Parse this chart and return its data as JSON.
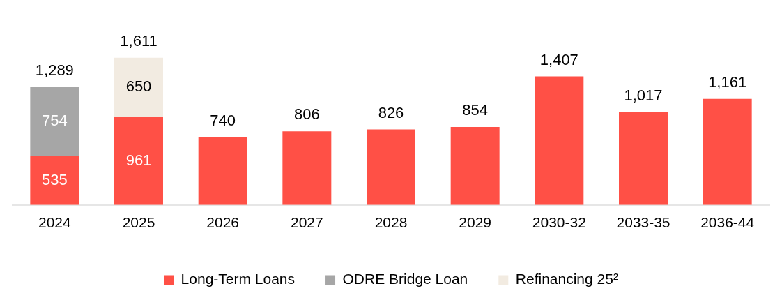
{
  "chart_data": {
    "type": "bar",
    "stacked": true,
    "categories": [
      "2024",
      "2025",
      "2026",
      "2027",
      "2028",
      "2029",
      "2030-32",
      "2033-35",
      "2036-44"
    ],
    "series": [
      {
        "name": "Long-Term Loans",
        "color": "#ff5046",
        "values": [
          535,
          961,
          740,
          806,
          826,
          854,
          1407,
          1017,
          1161
        ],
        "value_labels": [
          "535",
          "961",
          null,
          null,
          null,
          null,
          null,
          null,
          null
        ]
      },
      {
        "name": "ODRE Bridge Loan",
        "color": "#a6a6a6",
        "values": [
          754,
          null,
          null,
          null,
          null,
          null,
          null,
          null,
          null
        ],
        "value_labels": [
          "754",
          null,
          null,
          null,
          null,
          null,
          null,
          null,
          null
        ]
      },
      {
        "name": "Refinancing 25²",
        "color": "#f2ebe1",
        "values": [
          null,
          650,
          null,
          null,
          null,
          null,
          null,
          null,
          null
        ],
        "value_labels": [
          null,
          "650",
          null,
          null,
          null,
          null,
          null,
          null,
          null
        ]
      }
    ],
    "totals": [
      "1,289",
      "1,611",
      "740",
      "806",
      "826",
      "854",
      "1,407",
      "1,017",
      "1,161"
    ],
    "legend": "bottom",
    "grid": false
  }
}
